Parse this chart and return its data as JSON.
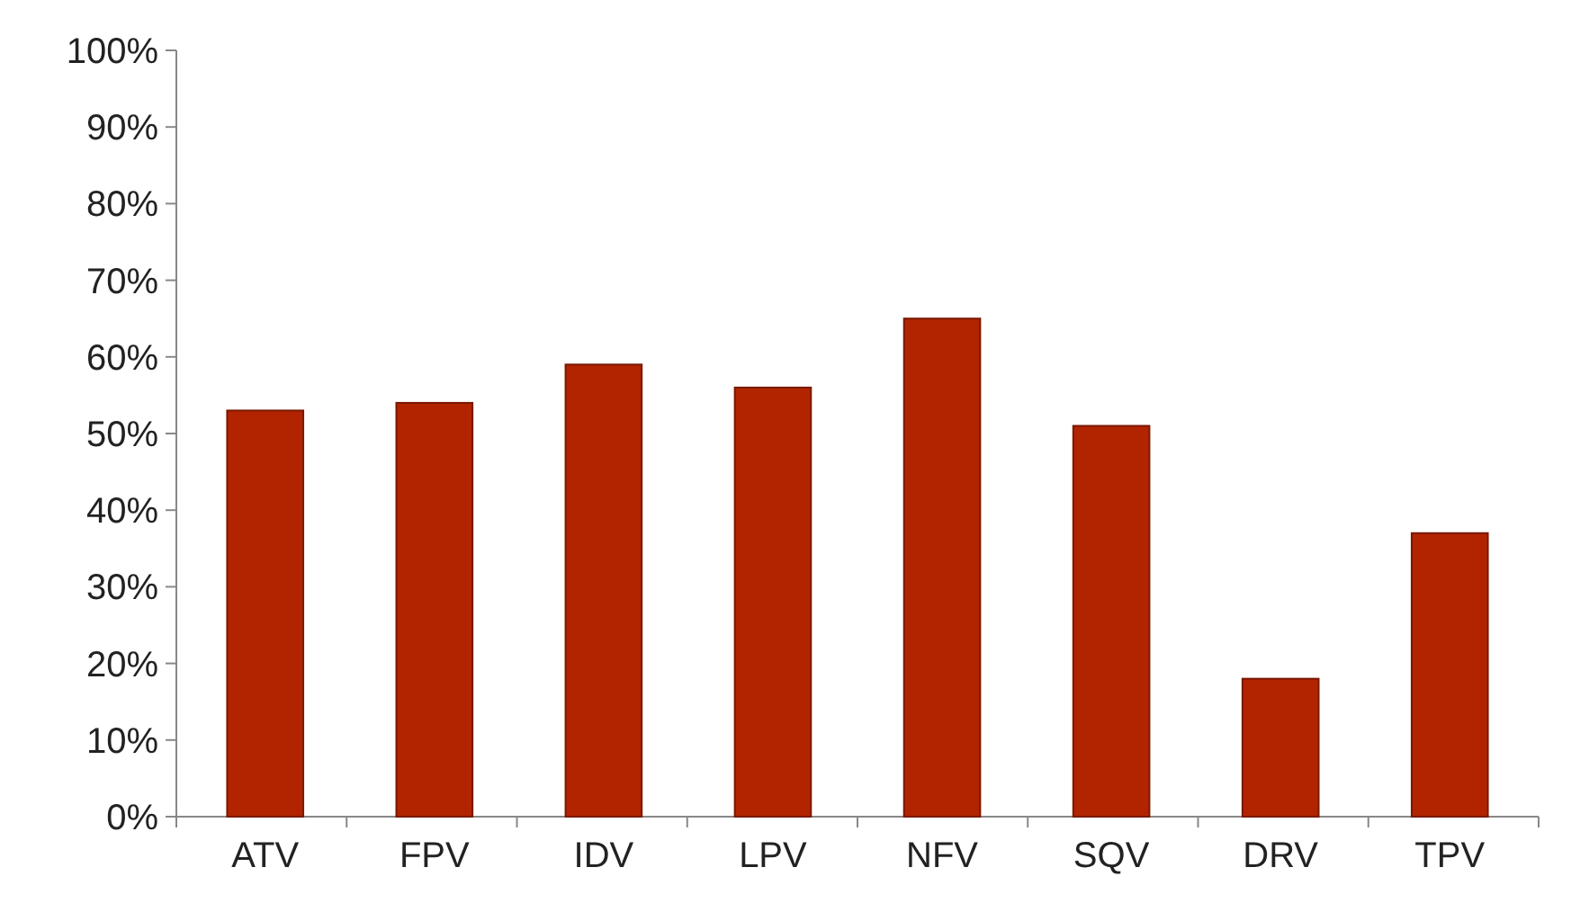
{
  "chart_data": {
    "type": "bar",
    "categories": [
      "ATV",
      "FPV",
      "IDV",
      "LPV",
      "NFV",
      "SQV",
      "DRV",
      "TPV"
    ],
    "values": [
      53,
      54,
      59,
      56,
      65,
      51,
      18,
      37
    ],
    "color": "#b22400",
    "ylim": [
      0,
      100
    ],
    "yticks": [
      {
        "value": 0,
        "label": "0%"
      },
      {
        "value": 10,
        "label": "10%"
      },
      {
        "value": 20,
        "label": "20%"
      },
      {
        "value": 30,
        "label": "30%"
      },
      {
        "value": 40,
        "label": "40%"
      },
      {
        "value": 50,
        "label": "50%"
      },
      {
        "value": 60,
        "label": "60%"
      },
      {
        "value": 70,
        "label": "70%"
      },
      {
        "value": 80,
        "label": "80%"
      },
      {
        "value": 90,
        "label": "90%"
      },
      {
        "value": 100,
        "label": "100%"
      }
    ],
    "grid": false
  }
}
